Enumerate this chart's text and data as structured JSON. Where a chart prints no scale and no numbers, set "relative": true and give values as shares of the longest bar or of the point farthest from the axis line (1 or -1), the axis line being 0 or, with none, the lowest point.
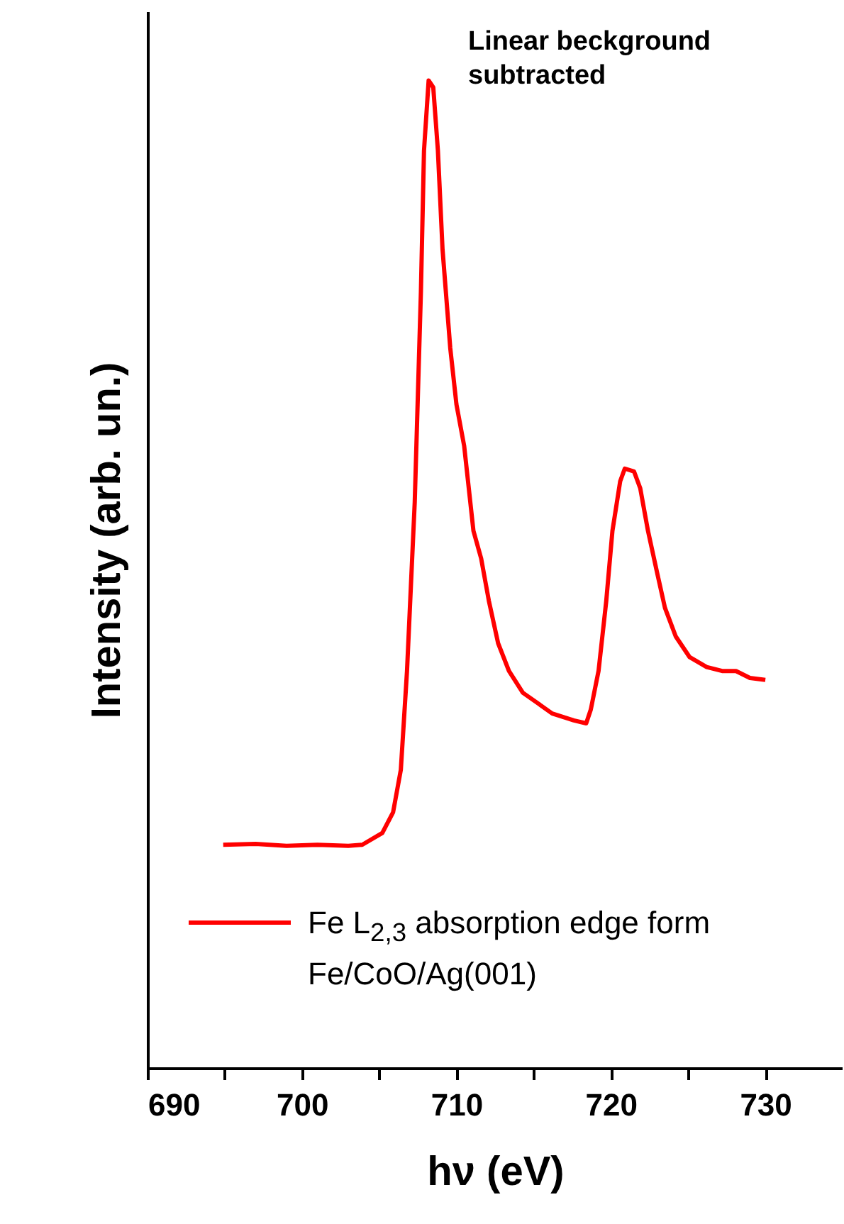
{
  "chart_data": {
    "type": "line",
    "xlabel": "hν (eV)",
    "ylabel": "Intensity (arb. un.)",
    "relative": true,
    "xlim": [
      690,
      735
    ],
    "xticks": [
      690,
      {
        "value": 695,
        "label": null
      },
      700,
      {
        "value": 705,
        "label": null
      },
      710,
      {
        "value": 715,
        "label": null
      },
      720,
      {
        "value": 725,
        "label": null
      },
      730
    ],
    "annotations": [
      "Linear beckground subtracted"
    ],
    "legend": "bottom left",
    "grid": false,
    "marker": "none",
    "line_style": "solid",
    "series": [
      {
        "name": "Fe L$_{2,3}$ absorption edge form Fe/CoO/Ag(001)",
        "color": "#ff0000",
        "x": [
          694.9,
          697,
          699,
          701,
          703,
          703.9,
          705.2,
          705.9,
          706.4,
          706.8,
          707.3,
          707.7,
          707.9,
          708.2,
          708.5,
          708.8,
          709.1,
          709.6,
          710.0,
          710.5,
          711.1,
          711.6,
          712.1,
          712.7,
          713.4,
          714.3,
          715.3,
          716.2,
          717.6,
          718.4,
          718.7,
          719.2,
          719.7,
          720.1,
          720.6,
          720.9,
          721.5,
          721.9,
          722.4,
          723.0,
          723.5,
          724.2,
          725.1,
          726.2,
          727.2,
          728.1,
          729.0,
          730.0
        ],
        "values": [
          0.226,
          0.227,
          0.225,
          0.226,
          0.225,
          0.226,
          0.238,
          0.259,
          0.302,
          0.402,
          0.573,
          0.786,
          0.929,
          1,
          0.993,
          0.929,
          0.829,
          0.729,
          0.672,
          0.63,
          0.544,
          0.516,
          0.473,
          0.43,
          0.402,
          0.38,
          0.369,
          0.359,
          0.352,
          0.349,
          0.363,
          0.402,
          0.473,
          0.544,
          0.594,
          0.607,
          0.604,
          0.587,
          0.544,
          0.501,
          0.466,
          0.437,
          0.416,
          0.406,
          0.402,
          0.402,
          0.395,
          0.393
        ]
      }
    ]
  }
}
